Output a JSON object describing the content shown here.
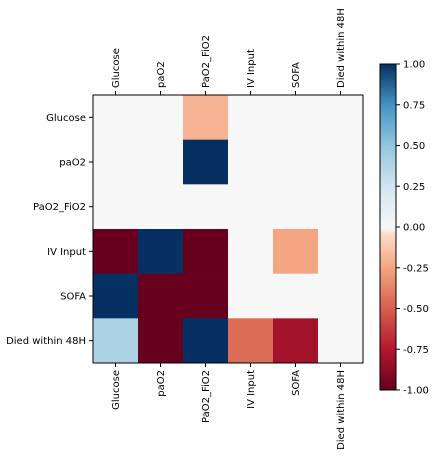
{
  "chart_data": {
    "type": "heatmap",
    "title": "",
    "xlabel": "",
    "ylabel": "",
    "row_labels": [
      "Glucose",
      "paO2",
      "PaO2_FiO2",
      "IV Input",
      "SOFA",
      "Died within 48H"
    ],
    "col_labels": [
      "Glucose",
      "paO2",
      "PaO2_FiO2",
      "IV Input",
      "SOFA",
      "Died within 48H"
    ],
    "values": [
      [
        0,
        0,
        -0.2,
        0,
        0,
        0
      ],
      [
        0,
        0,
        1,
        0,
        0,
        0
      ],
      [
        0,
        0,
        0,
        0,
        0,
        0
      ],
      [
        -1,
        1,
        -1,
        0,
        -0.25,
        0
      ],
      [
        1,
        -1,
        -1,
        0,
        0,
        0
      ],
      [
        0.4,
        -1,
        1,
        -0.45,
        -0.8,
        0
      ]
    ],
    "colormap": "RdBu",
    "zero_color": "#f7f7f7",
    "grid": false,
    "colorbar": {
      "min": -1.0,
      "max": 1.0,
      "ticks": [
        "1.00",
        "0.75",
        "0.50",
        "0.25",
        "0.00",
        "-0.25",
        "-0.50",
        "-0.75",
        "-1.00"
      ]
    }
  }
}
